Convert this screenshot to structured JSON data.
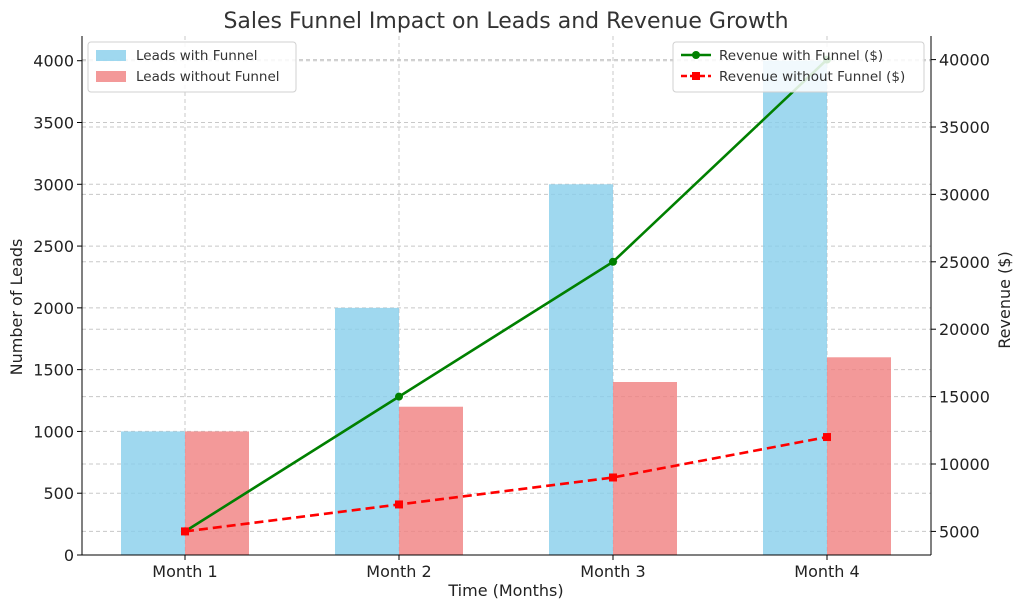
{
  "chart_data": {
    "type": "bar+line",
    "title": "Sales Funnel Impact on Leads and Revenue Growth",
    "xlabel": "Time (Months)",
    "ylabel_left": "Number of Leads",
    "ylabel_right": "Revenue ($)",
    "categories": [
      "Month 1",
      "Month 2",
      "Month 3",
      "Month 4"
    ],
    "ylim_left": [
      0,
      4200
    ],
    "yticks_left": [
      0,
      500,
      1000,
      1500,
      2000,
      2500,
      3000,
      3500,
      4000
    ],
    "ylim_right": [
      3250,
      41750
    ],
    "yticks_right": [
      5000,
      10000,
      15000,
      20000,
      25000,
      30000,
      35000,
      40000
    ],
    "grid": true,
    "bar_series": [
      {
        "name": "Leads with Funnel",
        "color": "#87ceeb",
        "values": [
          1000,
          2000,
          3000,
          4000
        ]
      },
      {
        "name": "Leads without Funnel",
        "color": "#f08080",
        "values": [
          1000,
          1200,
          1400,
          1600
        ]
      }
    ],
    "line_series": [
      {
        "name": "Revenue with Funnel ($)",
        "color": "#008000",
        "style": "solid",
        "marker": "circle",
        "values": [
          5000,
          15000,
          25000,
          40000
        ]
      },
      {
        "name": "Revenue without Funnel ($)",
        "color": "#ff0000",
        "style": "dashed",
        "marker": "square",
        "values": [
          5000,
          7000,
          9000,
          12000
        ]
      }
    ],
    "legend_left_placement": "top-left",
    "legend_right_placement": "top-right"
  }
}
